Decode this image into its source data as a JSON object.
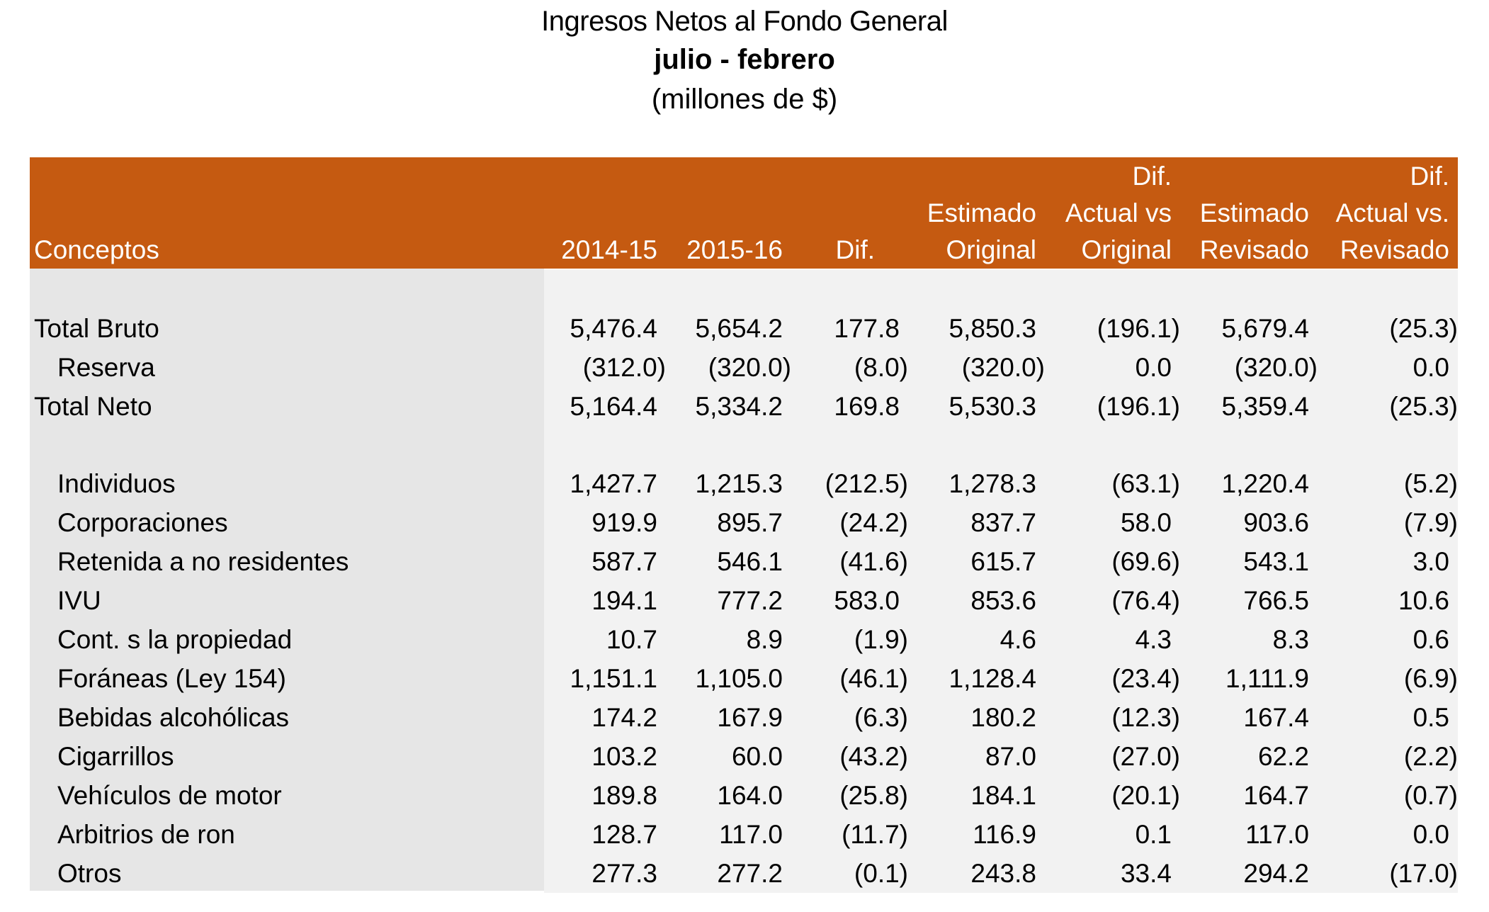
{
  "title": "Ingresos Netos al Fondo General",
  "subtitle": "julio - febrero",
  "units": "(millones de $)",
  "columns": [
    {
      "key": "concepto",
      "lines": [
        "Conceptos"
      ]
    },
    {
      "key": "y1415",
      "lines": [
        "2014-15"
      ]
    },
    {
      "key": "y1516",
      "lines": [
        "2015-16"
      ]
    },
    {
      "key": "dif",
      "lines": [
        "Dif."
      ]
    },
    {
      "key": "est_orig",
      "lines": [
        "Estimado",
        "Original"
      ]
    },
    {
      "key": "dif_orig",
      "lines": [
        "Dif.",
        "Actual vs",
        "Original"
      ]
    },
    {
      "key": "est_rev",
      "lines": [
        "Estimado",
        "Revisado"
      ]
    },
    {
      "key": "dif_rev",
      "lines": [
        "Dif.",
        "Actual vs.",
        "Revisado"
      ]
    }
  ],
  "rows": [
    {
      "concepto": "Total Bruto",
      "indent": false,
      "values": [
        "5,476.4",
        "5,654.2",
        "177.8",
        "5,850.3",
        "(196.1)",
        "5,679.4",
        "(25.3)"
      ]
    },
    {
      "concepto": "Reserva",
      "indent": true,
      "values": [
        "(312.0)",
        "(320.0)",
        "(8.0)",
        "(320.0)",
        "0.0",
        "(320.0)",
        "0.0"
      ]
    },
    {
      "concepto": "Total Neto",
      "indent": false,
      "values": [
        "5,164.4",
        "5,334.2",
        "169.8",
        "5,530.3",
        "(196.1)",
        "5,359.4",
        "(25.3)"
      ]
    },
    {
      "concepto": "Individuos",
      "indent": true,
      "values": [
        "1,427.7",
        "1,215.3",
        "(212.5)",
        "1,278.3",
        "(63.1)",
        "1,220.4",
        "(5.2)"
      ]
    },
    {
      "concepto": "Corporaciones",
      "indent": true,
      "values": [
        "919.9",
        "895.7",
        "(24.2)",
        "837.7",
        "58.0",
        "903.6",
        "(7.9)"
      ]
    },
    {
      "concepto": "Retenida a no residentes",
      "indent": true,
      "values": [
        "587.7",
        "546.1",
        "(41.6)",
        "615.7",
        "(69.6)",
        "543.1",
        "3.0"
      ]
    },
    {
      "concepto": "IVU",
      "indent": true,
      "values": [
        "194.1",
        "777.2",
        "583.0",
        "853.6",
        "(76.4)",
        "766.5",
        "10.6"
      ]
    },
    {
      "concepto": "Cont. s la propiedad",
      "indent": true,
      "values": [
        "10.7",
        "8.9",
        "(1.9)",
        "4.6",
        "4.3",
        "8.3",
        "0.6"
      ]
    },
    {
      "concepto": "Foráneas (Ley 154)",
      "indent": true,
      "values": [
        "1,151.1",
        "1,105.0",
        "(46.1)",
        "1,128.4",
        "(23.4)",
        "1,111.9",
        "(6.9)"
      ]
    },
    {
      "concepto": "Bebidas alcohólicas",
      "indent": true,
      "values": [
        "174.2",
        "167.9",
        "(6.3)",
        "180.2",
        "(12.3)",
        "167.4",
        "0.5"
      ]
    },
    {
      "concepto": "Cigarrillos",
      "indent": true,
      "values": [
        "103.2",
        "60.0",
        "(43.2)",
        "87.0",
        "(27.0)",
        "62.2",
        "(2.2)"
      ]
    },
    {
      "concepto": "Vehículos de motor",
      "indent": true,
      "values": [
        "189.8",
        "164.0",
        "(25.8)",
        "184.1",
        "(20.1)",
        "164.7",
        "(0.7)"
      ]
    },
    {
      "concepto": "Arbitrios de ron",
      "indent": true,
      "values": [
        "128.7",
        "117.0",
        "(11.7)",
        "116.9",
        "0.1",
        "117.0",
        "0.0"
      ]
    },
    {
      "concepto": "Otros",
      "indent": true,
      "values": [
        "277.3",
        "277.2",
        "(0.1)",
        "243.8",
        "33.4",
        "294.2",
        "(17.0)"
      ]
    }
  ],
  "colors": {
    "header_bg": "#c55a11",
    "header_text": "#ffffff",
    "left_panel": "#e6e6e6",
    "stripe": "#f2f2f2"
  }
}
